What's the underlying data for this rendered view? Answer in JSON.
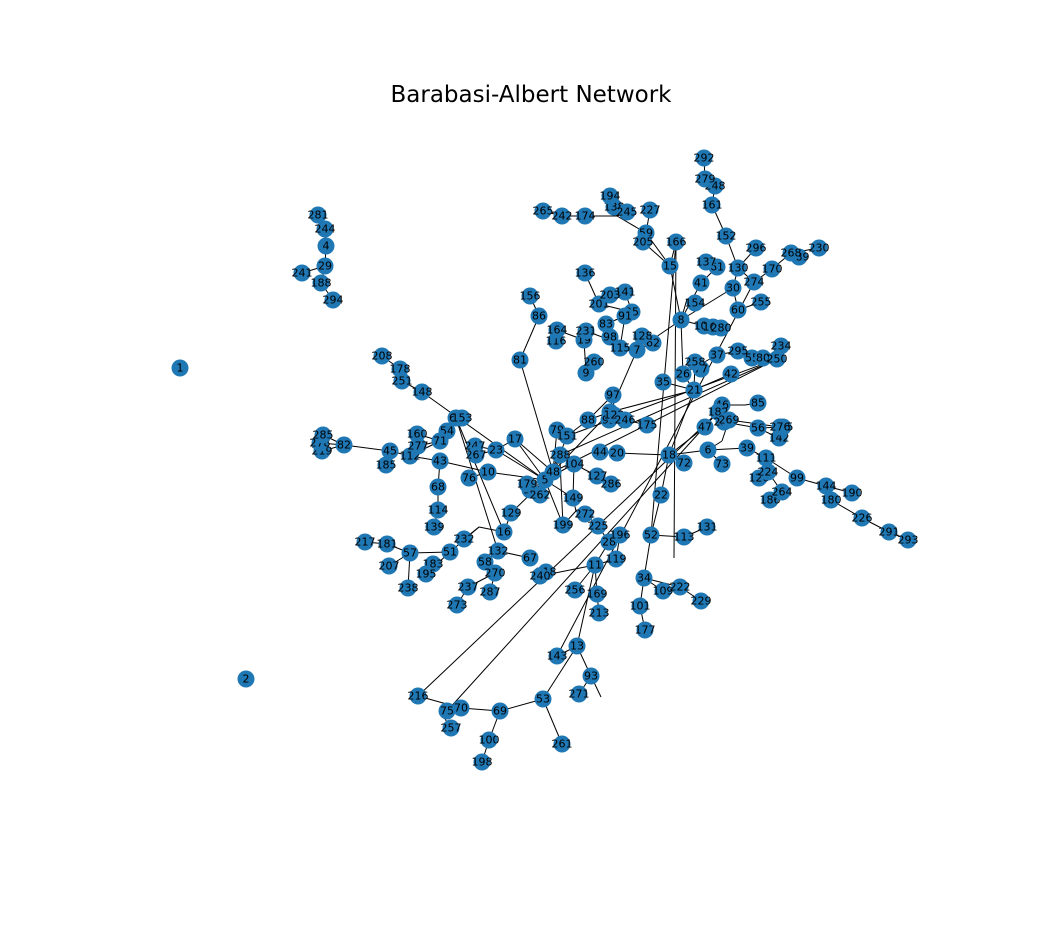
{
  "title": "Barabasi-Albert Network",
  "node_color": "#1f77b4",
  "edge_color": "#000000",
  "label_color": "#000000",
  "nodes": [
    "1",
    "2",
    "4",
    "5",
    "6",
    "7",
    "8",
    "9",
    "10",
    "11",
    "13",
    "15",
    "16",
    "17",
    "18",
    "19",
    "20",
    "21",
    "22",
    "23",
    "25",
    "26",
    "28",
    "29",
    "30",
    "32",
    "34",
    "35",
    "37",
    "39",
    "41",
    "42",
    "43",
    "44",
    "45",
    "46",
    "47",
    "48",
    "51",
    "52",
    "53",
    "54",
    "55",
    "56",
    "57",
    "58",
    "59",
    "60",
    "61",
    "62",
    "63",
    "67",
    "68",
    "69",
    "70",
    "71",
    "72",
    "73",
    "75",
    "76",
    "77",
    "79",
    "80",
    "81",
    "82",
    "83",
    "85",
    "86",
    "88",
    "91",
    "92",
    "93",
    "95",
    "97",
    "98",
    "99",
    "100",
    "101",
    "104",
    "105",
    "109",
    "111",
    "112",
    "113",
    "114",
    "115",
    "116",
    "119",
    "122",
    "126",
    "127",
    "128",
    "129",
    "130",
    "131",
    "132",
    "136",
    "137",
    "138",
    "139",
    "141",
    "142",
    "143",
    "144",
    "148",
    "149",
    "150",
    "151",
    "152",
    "153",
    "154",
    "156",
    "160",
    "161",
    "164",
    "166",
    "167",
    "169",
    "170",
    "174",
    "175",
    "177",
    "178",
    "179",
    "180",
    "181",
    "182",
    "183",
    "185",
    "186",
    "188",
    "189",
    "190",
    "194",
    "195",
    "196",
    "198",
    "199",
    "201",
    "203",
    "205",
    "207",
    "208",
    "213",
    "216",
    "217",
    "218",
    "219",
    "222",
    "224",
    "225",
    "226",
    "227",
    "229",
    "230",
    "231",
    "232",
    "234",
    "237",
    "238",
    "240",
    "241",
    "242",
    "244",
    "245",
    "246",
    "247",
    "248",
    "250",
    "251",
    "255",
    "256",
    "257",
    "258",
    "259",
    "260",
    "261",
    "262",
    "264",
    "265",
    "267",
    "268",
    "269",
    "270",
    "271",
    "272",
    "273",
    "274",
    "275",
    "276",
    "277",
    "278",
    "279",
    "280",
    "281",
    "285",
    "286",
    "287",
    "288",
    "289",
    "291",
    "292",
    "293",
    "294",
    "295",
    "296"
  ],
  "edge_count": 298
}
